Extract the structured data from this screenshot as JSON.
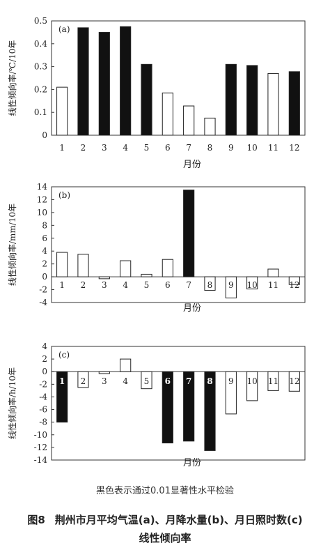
{
  "chart_data": [
    {
      "type": "bar",
      "panel_label": "(a)",
      "ylabel": "线性倾向率/℃/10年",
      "xlabel": "月份",
      "categories": [
        "1",
        "2",
        "3",
        "4",
        "5",
        "6",
        "7",
        "8",
        "9",
        "10",
        "11",
        "12"
      ],
      "values": [
        0.21,
        0.47,
        0.45,
        0.475,
        0.31,
        0.185,
        0.128,
        0.075,
        0.31,
        0.305,
        0.27,
        0.278
      ],
      "significant": [
        false,
        true,
        true,
        true,
        true,
        false,
        false,
        false,
        true,
        true,
        false,
        true
      ],
      "ylim": [
        0,
        0.5
      ],
      "yticks": [
        "0",
        "0.1",
        "0.2",
        "0.3",
        "0.4",
        "0.5"
      ],
      "xlabels_position": "bottom"
    },
    {
      "type": "bar",
      "panel_label": "(b)",
      "ylabel": "线性倾向率/mm/10年",
      "xlabel": "月份",
      "categories": [
        "1",
        "2",
        "3",
        "4",
        "5",
        "6",
        "7",
        "8",
        "9",
        "10",
        "11",
        "12"
      ],
      "values": [
        3.8,
        3.5,
        -0.3,
        2.5,
        0.4,
        2.7,
        13.5,
        -2.1,
        -3.3,
        -1.9,
        1.2,
        -1.2
      ],
      "significant": [
        false,
        false,
        false,
        false,
        false,
        false,
        true,
        false,
        false,
        false,
        false,
        false
      ],
      "ylim": [
        -4,
        14
      ],
      "yticks": [
        "-4",
        "-2",
        "0",
        "2",
        "4",
        "6",
        "8",
        "10",
        "12",
        "14"
      ],
      "xlabels_position": "zero-line"
    },
    {
      "type": "bar",
      "panel_label": "(c)",
      "ylabel": "线性倾向率/h/10年",
      "xlabel": "月份",
      "categories": [
        "1",
        "2",
        "3",
        "4",
        "5",
        "6",
        "7",
        "8",
        "9",
        "10",
        "11",
        "12"
      ],
      "values": [
        -8.0,
        -2.5,
        -0.3,
        2.0,
        -2.7,
        -11.3,
        -11.0,
        -12.5,
        -6.7,
        -4.6,
        -3.0,
        -3.1
      ],
      "significant": [
        true,
        false,
        false,
        false,
        false,
        true,
        true,
        true,
        false,
        false,
        false,
        false
      ],
      "ylim": [
        -14,
        4
      ],
      "yticks": [
        "-14",
        "-12",
        "-10",
        "-8",
        "-6",
        "-4",
        "-2",
        "0",
        "2",
        "4"
      ],
      "xlabels_position": "zero-line"
    }
  ],
  "note": "黑色表示通过0.01显著性水平检验",
  "caption": {
    "number": "图8",
    "line1": "荆州市月平均气温(a)、月降水量(b)、月日照时数(c)",
    "line2": "线性倾向率"
  }
}
